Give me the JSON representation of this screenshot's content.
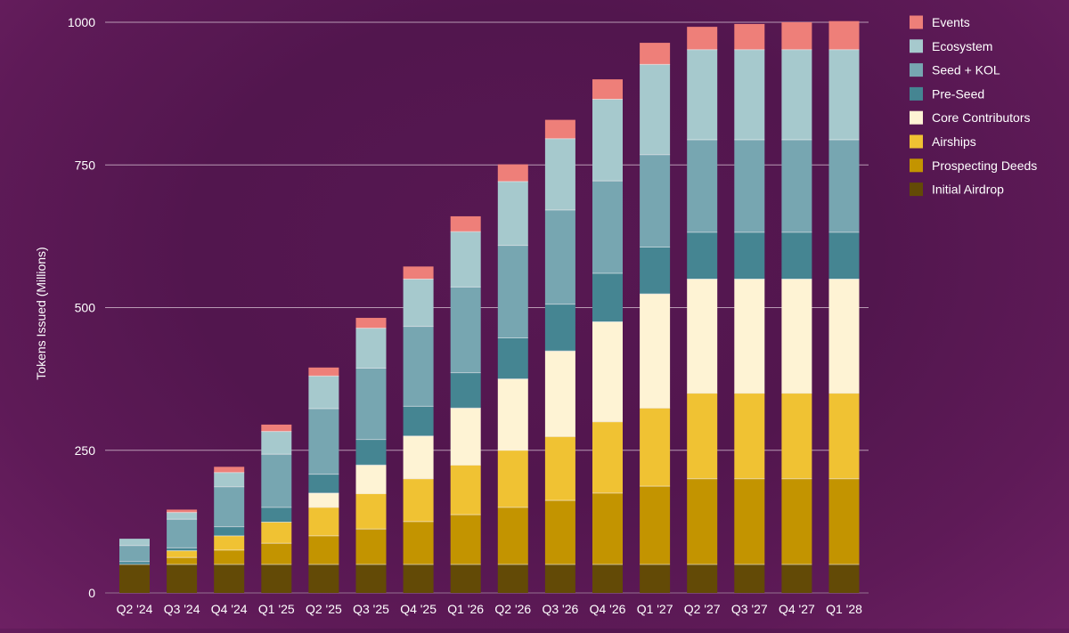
{
  "chart_data": {
    "type": "bar",
    "stacked": true,
    "title": "",
    "xlabel": "",
    "ylabel": "Tokens Issued (Millions)",
    "ylim": [
      0,
      1000
    ],
    "yticks": [
      "0",
      "250",
      "500",
      "750",
      "1000"
    ],
    "grid": "horizontal",
    "legend_position": "right",
    "categories": [
      "Q2 '24",
      "Q3 '24",
      "Q4 '24",
      "Q1 '25",
      "Q2 '25",
      "Q3 '25",
      "Q4 '25",
      "Q1 '26",
      "Q2 '26",
      "Q3 '26",
      "Q4 '26",
      "Q1 '27",
      "Q2 '27",
      "Q3 '27",
      "Q4 '27",
      "Q1 '28"
    ],
    "series": [
      {
        "name": "Initial Airdrop",
        "color": "#634a06",
        "values": [
          50,
          50,
          50,
          50,
          50,
          50,
          50,
          50,
          50,
          50,
          50,
          50,
          50,
          50,
          50,
          50
        ]
      },
      {
        "name": "Prospecting Deeds",
        "color": "#c39400",
        "values": [
          0,
          12,
          25,
          37,
          50,
          62,
          75,
          87,
          100,
          112,
          125,
          137,
          150,
          150,
          150,
          150
        ]
      },
      {
        "name": "Airships",
        "color": "#f0c233",
        "values": [
          0,
          12,
          25,
          37,
          50,
          62,
          75,
          87,
          100,
          112,
          125,
          137,
          150,
          150,
          150,
          150
        ]
      },
      {
        "name": "Core Contributors",
        "color": "#fef3d4",
        "values": [
          0,
          0,
          0,
          0,
          25,
          50,
          75,
          100,
          125,
          150,
          175,
          200,
          200,
          200,
          200,
          200
        ]
      },
      {
        "name": "Pre-Seed",
        "color": "#458592",
        "values": [
          5,
          5,
          16,
          26,
          33,
          45,
          52,
          62,
          72,
          82,
          85,
          82,
          82,
          82,
          82,
          82
        ]
      },
      {
        "name": "Seed + KOL",
        "color": "#77a6b1",
        "values": [
          28,
          50,
          70,
          93,
          115,
          125,
          140,
          150,
          162,
          165,
          162,
          162,
          162,
          162,
          162,
          162
        ]
      },
      {
        "name": "Ecosystem",
        "color": "#a6c9cd",
        "values": [
          12,
          12,
          25,
          40,
          57,
          70,
          83,
          97,
          112,
          125,
          143,
          158,
          158,
          158,
          158,
          158
        ]
      },
      {
        "name": "Events",
        "color": "#ee7f79",
        "values": [
          0,
          5,
          10,
          12,
          15,
          18,
          22,
          27,
          30,
          33,
          35,
          38,
          40,
          45,
          48,
          50
        ]
      }
    ]
  }
}
